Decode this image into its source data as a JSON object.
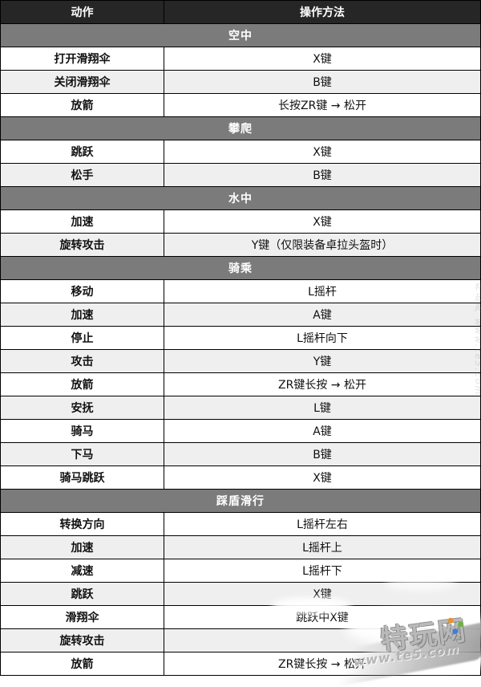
{
  "header": {
    "action_col": "动作",
    "method_col": "操作方法"
  },
  "sections": [
    {
      "title": "空中",
      "rows": [
        {
          "action": "打开滑翔伞",
          "method": "X键"
        },
        {
          "action": "关闭滑翔伞",
          "method": "B键"
        },
        {
          "action": "放箭",
          "method": "长按ZR键 → 松开"
        }
      ]
    },
    {
      "title": "攀爬",
      "rows": [
        {
          "action": "跳跃",
          "method": "X键"
        },
        {
          "action": "松手",
          "method": "B键"
        }
      ]
    },
    {
      "title": "水中",
      "rows": [
        {
          "action": "加速",
          "method": "X键"
        },
        {
          "action": "旋转攻击",
          "method": "Y键（仅限装备卓拉头盔时）"
        }
      ]
    },
    {
      "title": "骑乘",
      "rows": [
        {
          "action": "移动",
          "method": "L摇杆"
        },
        {
          "action": "加速",
          "method": "A键"
        },
        {
          "action": "停止",
          "method": "L摇杆向下"
        },
        {
          "action": "攻击",
          "method": "Y键"
        },
        {
          "action": "放箭",
          "method": "ZR键长按 → 松开"
        },
        {
          "action": "安抚",
          "method": "L键"
        },
        {
          "action": "骑马",
          "method": "A键"
        },
        {
          "action": "下马",
          "method": "B键"
        },
        {
          "action": "骑马跳跃",
          "method": "X键"
        }
      ]
    },
    {
      "title": "踩盾滑行",
      "rows": [
        {
          "action": "转换方向",
          "method": "L摇杆左右"
        },
        {
          "action": "加速",
          "method": "L摇杆上"
        },
        {
          "action": "减速",
          "method": "L摇杆下"
        },
        {
          "action": "跳跃",
          "method": "X键"
        },
        {
          "action": "滑翔伞",
          "method": "跳跃中X键"
        },
        {
          "action": "旋转攻击",
          "method": ""
        },
        {
          "action": "放箭",
          "method": "ZR键长按 → 松开"
        }
      ]
    }
  ],
  "watermark": {
    "logo_text": "特玩网",
    "url_text": "www.te5.com",
    "edge_text": "特玩网 www.te5.com",
    "dot_colors": [
      "#e8922f",
      "#6db33f",
      "#3f7fd6"
    ]
  },
  "colors": {
    "header_bg": "#262626",
    "section_bg": "#7b7b7b",
    "row_alt_bg": "#efefef",
    "border": "#000000"
  }
}
